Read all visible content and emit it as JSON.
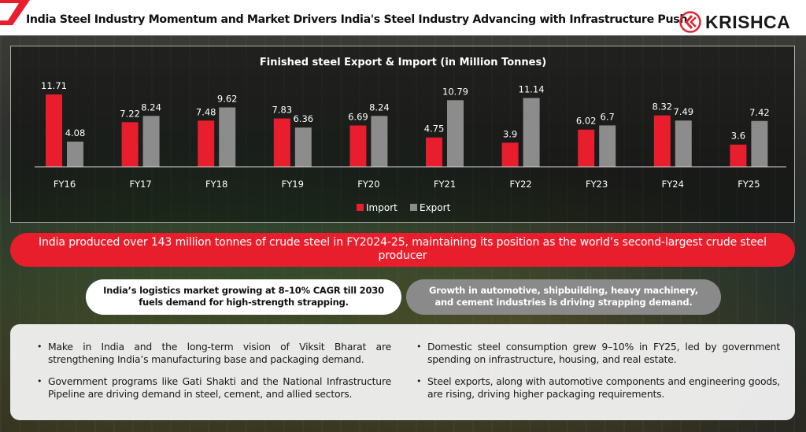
{
  "header": {
    "title": "India Steel Industry Momentum and Market Drivers India's Steel Industry Advancing with Infrastructure Push",
    "logo_text": "KRISHCA",
    "logo_icon": "krishca-k-circle-icon",
    "corner_icon": "red-chevron-icon"
  },
  "colors": {
    "brand_red": "#e91e2d",
    "export_gray": "#8c8c8c",
    "white": "#ffffff"
  },
  "chart_data": {
    "type": "bar",
    "title": "Finished steel Export & Import (in Million Tonnes)",
    "xlabel": "",
    "ylabel": "",
    "categories": [
      "FY16",
      "FY17",
      "FY18",
      "FY19",
      "FY20",
      "FY21",
      "FY22",
      "FY23",
      "FY24",
      "FY25"
    ],
    "series": [
      {
        "name": "Import",
        "color": "#e91e2d",
        "values": [
          11.71,
          7.22,
          7.48,
          7.83,
          6.69,
          4.75,
          3.9,
          6.02,
          8.32,
          3.6
        ]
      },
      {
        "name": "Export",
        "color": "#8c8c8c",
        "values": [
          4.08,
          8.24,
          9.62,
          6.36,
          8.24,
          10.79,
          11.14,
          6.7,
          7.49,
          7.42
        ]
      }
    ],
    "ylim": [
      0,
      12.5
    ],
    "grid": false,
    "y_axis_visible": false,
    "data_labels": true,
    "legend": "bottom-center"
  },
  "banner": {
    "text": "India produced over 143 million tonnes of crude steel in FY2024-25, maintaining its position as the world’s second-largest crude steel producer"
  },
  "pills": [
    {
      "line1": "India’s logistics market growing at 8–10% CAGR till 2030",
      "line2": "fuels demand for high-strength strapping."
    },
    {
      "line1": "Growth in automotive, shipbuilding, heavy machinery,",
      "line2": "and cement industries is driving strapping demand."
    }
  ],
  "bullets": {
    "left": [
      "Make in India and the long-term vision of Viksit Bharat are strengthening India’s manufacturing base and packaging demand.",
      "Government programs like Gati Shakti and the National Infrastructure Pipeline are driving demand in steel, cement, and allied sectors."
    ],
    "right": [
      "Domestic steel consumption grew 9–10% in FY25, led by government spending on infrastructure, housing, and real estate.",
      "Steel exports, along with automotive components and engineering goods, are rising, driving higher packaging requirements."
    ]
  }
}
